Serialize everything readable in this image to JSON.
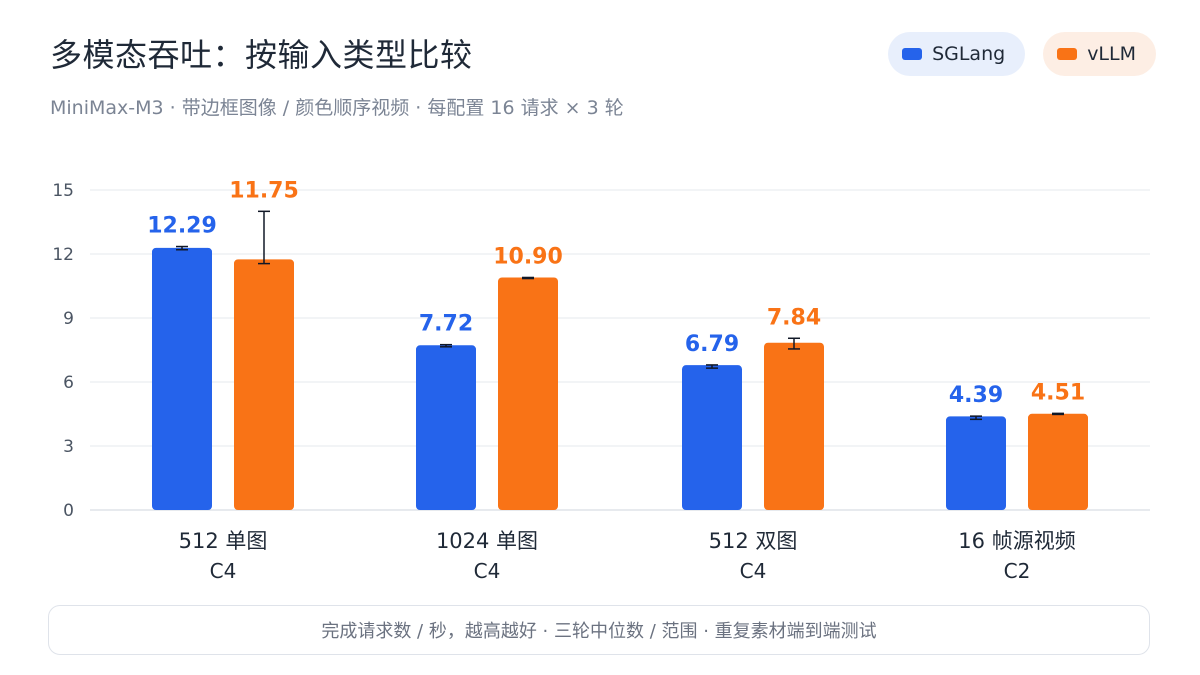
{
  "header": {
    "title": "多模态吞吐：按输入类型比较",
    "subtitle": "MiniMax-M3 · 带边框图像 / 颜色顺序视频 · 每配置 16 请求 × 3 轮"
  },
  "legend": [
    {
      "label": "SGLang",
      "color": "#2563eb"
    },
    {
      "label": "vLLM",
      "color": "#f97316"
    }
  ],
  "footer": {
    "note": "完成请求数 / 秒，越高越好 · 三轮中位数 / 范围 · 重复素材端到端测试"
  },
  "chart_data": {
    "type": "bar",
    "categories": [
      "512 单图",
      "1024 单图",
      "512 双图",
      "16 帧源视频"
    ],
    "sub_labels": [
      "C4",
      "C4",
      "C4",
      "C2"
    ],
    "series": [
      {
        "name": "SGLang",
        "color": "#2563eb",
        "values": [
          12.29,
          7.72,
          6.79,
          4.39
        ],
        "value_labels": [
          "12.29",
          "7.72",
          "6.79",
          "4.39"
        ],
        "range_low": [
          12.2,
          7.65,
          6.65,
          4.25
        ],
        "range_high": [
          12.35,
          7.75,
          6.8,
          4.4
        ]
      },
      {
        "name": "vLLM",
        "color": "#f97316",
        "values": [
          11.75,
          10.9,
          7.84,
          4.51
        ],
        "value_labels": [
          "11.75",
          "10.90",
          "7.84",
          "4.51"
        ],
        "range_low": [
          11.55,
          10.85,
          7.55,
          4.48
        ],
        "range_high": [
          14.0,
          10.9,
          8.05,
          4.53
        ]
      }
    ],
    "ylim": [
      0,
      15
    ],
    "yticks": [
      "0",
      "3",
      "6",
      "9",
      "12",
      "15"
    ],
    "grid": true,
    "legend_position": "top-right"
  }
}
